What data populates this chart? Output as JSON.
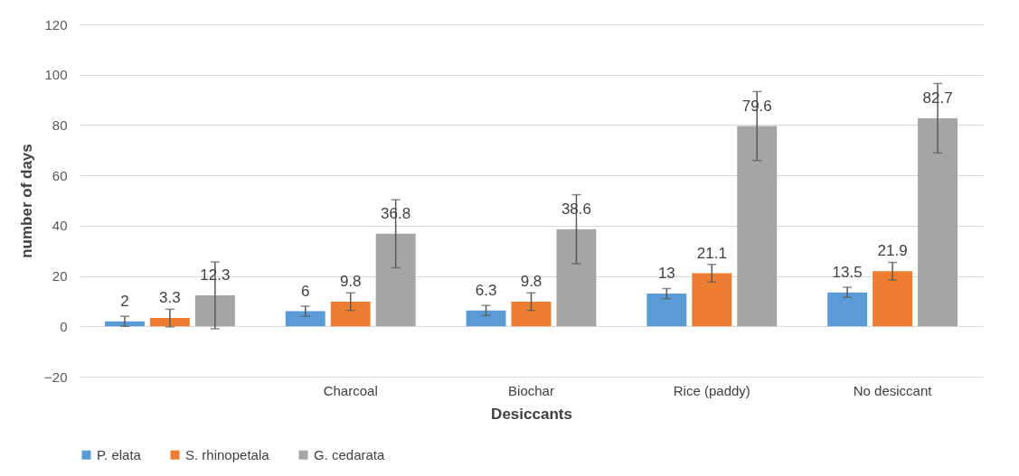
{
  "chart_data": {
    "type": "bar",
    "xlabel": "Desiccants",
    "ylabel": "number of days",
    "categories": [
      null,
      "Charcoal",
      "Biochar",
      "Rice (paddy)",
      "No desiccant"
    ],
    "series": [
      {
        "name": "P. elata",
        "color": "#5b9bd5",
        "values": [
          2,
          6,
          6.3,
          13,
          13.5
        ],
        "errors": [
          2,
          2,
          2,
          2,
          2
        ]
      },
      {
        "name": "S. rhinopetala",
        "color": "#ed7d31",
        "values": [
          3.3,
          9.8,
          9.8,
          21.1,
          21.9
        ],
        "errors": [
          3.5,
          3.5,
          3.5,
          3.5,
          3.5
        ]
      },
      {
        "name": "G. cedarata",
        "color": "#a5a5a5",
        "values": [
          12.3,
          36.8,
          38.6,
          79.6,
          82.7
        ],
        "errors": [
          13.3,
          13.5,
          13.7,
          13.7,
          13.8
        ]
      }
    ],
    "ylim": [
      -20,
      120
    ],
    "yticks": [
      -20,
      0,
      20,
      40,
      60,
      80,
      100,
      120
    ],
    "grid": "y",
    "legend": "bottom",
    "data_labels": true
  }
}
